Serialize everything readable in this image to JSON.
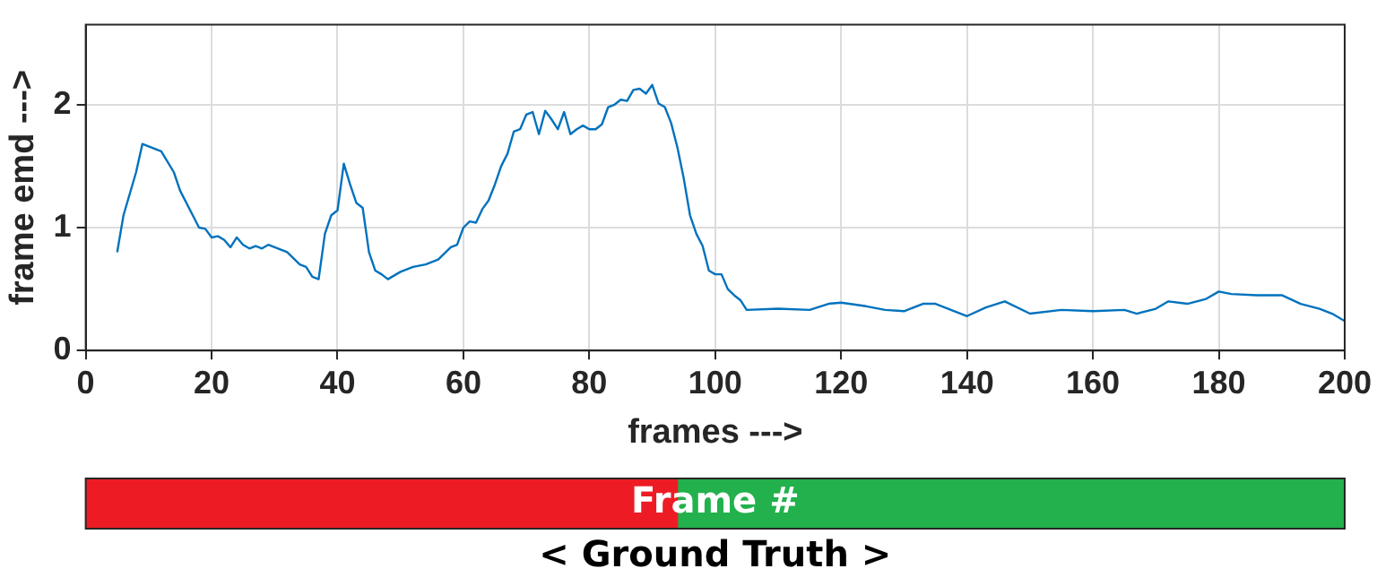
{
  "chart_data": [
    {
      "type": "line",
      "xlabel": "frames --->",
      "ylabel": "frame emd --->",
      "x": [
        5,
        6,
        8,
        9,
        10,
        12,
        14,
        15,
        17,
        18,
        19,
        20,
        21,
        22,
        23,
        24,
        25,
        26,
        27,
        28,
        29,
        31,
        32,
        34,
        35,
        36,
        37,
        38,
        39,
        40,
        41,
        42,
        43,
        44,
        45,
        46,
        47,
        48,
        50,
        52,
        54,
        56,
        58,
        59,
        60,
        61,
        62,
        63,
        64,
        65,
        66,
        67,
        68,
        69,
        70,
        71,
        72,
        73,
        74,
        75,
        76,
        77,
        78,
        79,
        80,
        81,
        82,
        83,
        84,
        85,
        86,
        87,
        88,
        89,
        90,
        91,
        92,
        93,
        94,
        95,
        96,
        97,
        98,
        99,
        100,
        101,
        102,
        103,
        104,
        105,
        110,
        115,
        118,
        120,
        124,
        127,
        130,
        133,
        135,
        140,
        143,
        146,
        150,
        155,
        160,
        165,
        167,
        170,
        172,
        175,
        178,
        180,
        182,
        186,
        190,
        193,
        196,
        198,
        200
      ],
      "series": [
        {
          "color": "#0072bd",
          "values": [
            0.8,
            1.1,
            1.45,
            1.68,
            1.66,
            1.62,
            1.45,
            1.3,
            1.1,
            1.0,
            0.99,
            0.92,
            0.93,
            0.9,
            0.84,
            0.92,
            0.86,
            0.83,
            0.85,
            0.83,
            0.86,
            0.82,
            0.8,
            0.7,
            0.68,
            0.6,
            0.58,
            0.95,
            1.1,
            1.14,
            1.52,
            1.35,
            1.2,
            1.16,
            0.8,
            0.65,
            0.62,
            0.58,
            0.64,
            0.68,
            0.7,
            0.74,
            0.84,
            0.86,
            1.0,
            1.05,
            1.04,
            1.15,
            1.22,
            1.35,
            1.5,
            1.6,
            1.78,
            1.8,
            1.92,
            1.94,
            1.76,
            1.95,
            1.88,
            1.8,
            1.94,
            1.76,
            1.8,
            1.83,
            1.8,
            1.8,
            1.84,
            1.98,
            2.0,
            2.04,
            2.03,
            2.12,
            2.13,
            2.09,
            2.16,
            2.01,
            1.98,
            1.85,
            1.65,
            1.4,
            1.1,
            0.95,
            0.85,
            0.65,
            0.62,
            0.62,
            0.5,
            0.45,
            0.41,
            0.33,
            0.34,
            0.33,
            0.38,
            0.39,
            0.36,
            0.33,
            0.32,
            0.38,
            0.38,
            0.28,
            0.35,
            0.4,
            0.3,
            0.33,
            0.32,
            0.33,
            0.3,
            0.34,
            0.4,
            0.38,
            0.42,
            0.48,
            0.46,
            0.45,
            0.45,
            0.38,
            0.34,
            0.3,
            0.24
          ]
        }
      ],
      "xlim": [
        0,
        200
      ],
      "xticks": [
        0,
        20,
        40,
        60,
        80,
        100,
        120,
        140,
        160,
        180,
        200
      ],
      "ylim": [
        0,
        2.65
      ],
      "yticks": [
        0,
        1,
        2
      ],
      "grid": true,
      "marker": "none",
      "line_style": "solid"
    },
    {
      "type": "bar",
      "orientation": "horizontal",
      "stacked": true,
      "categories": [
        null
      ],
      "series": [
        {
          "color": "#ed1c24",
          "values": [
            94
          ]
        },
        {
          "color": "#22b14c",
          "values": [
            106
          ]
        }
      ],
      "xlim": [
        0,
        200
      ],
      "tick_labels": false,
      "xlabel": "< Ground Truth >",
      "annotations": [
        "Frame #"
      ]
    }
  ]
}
